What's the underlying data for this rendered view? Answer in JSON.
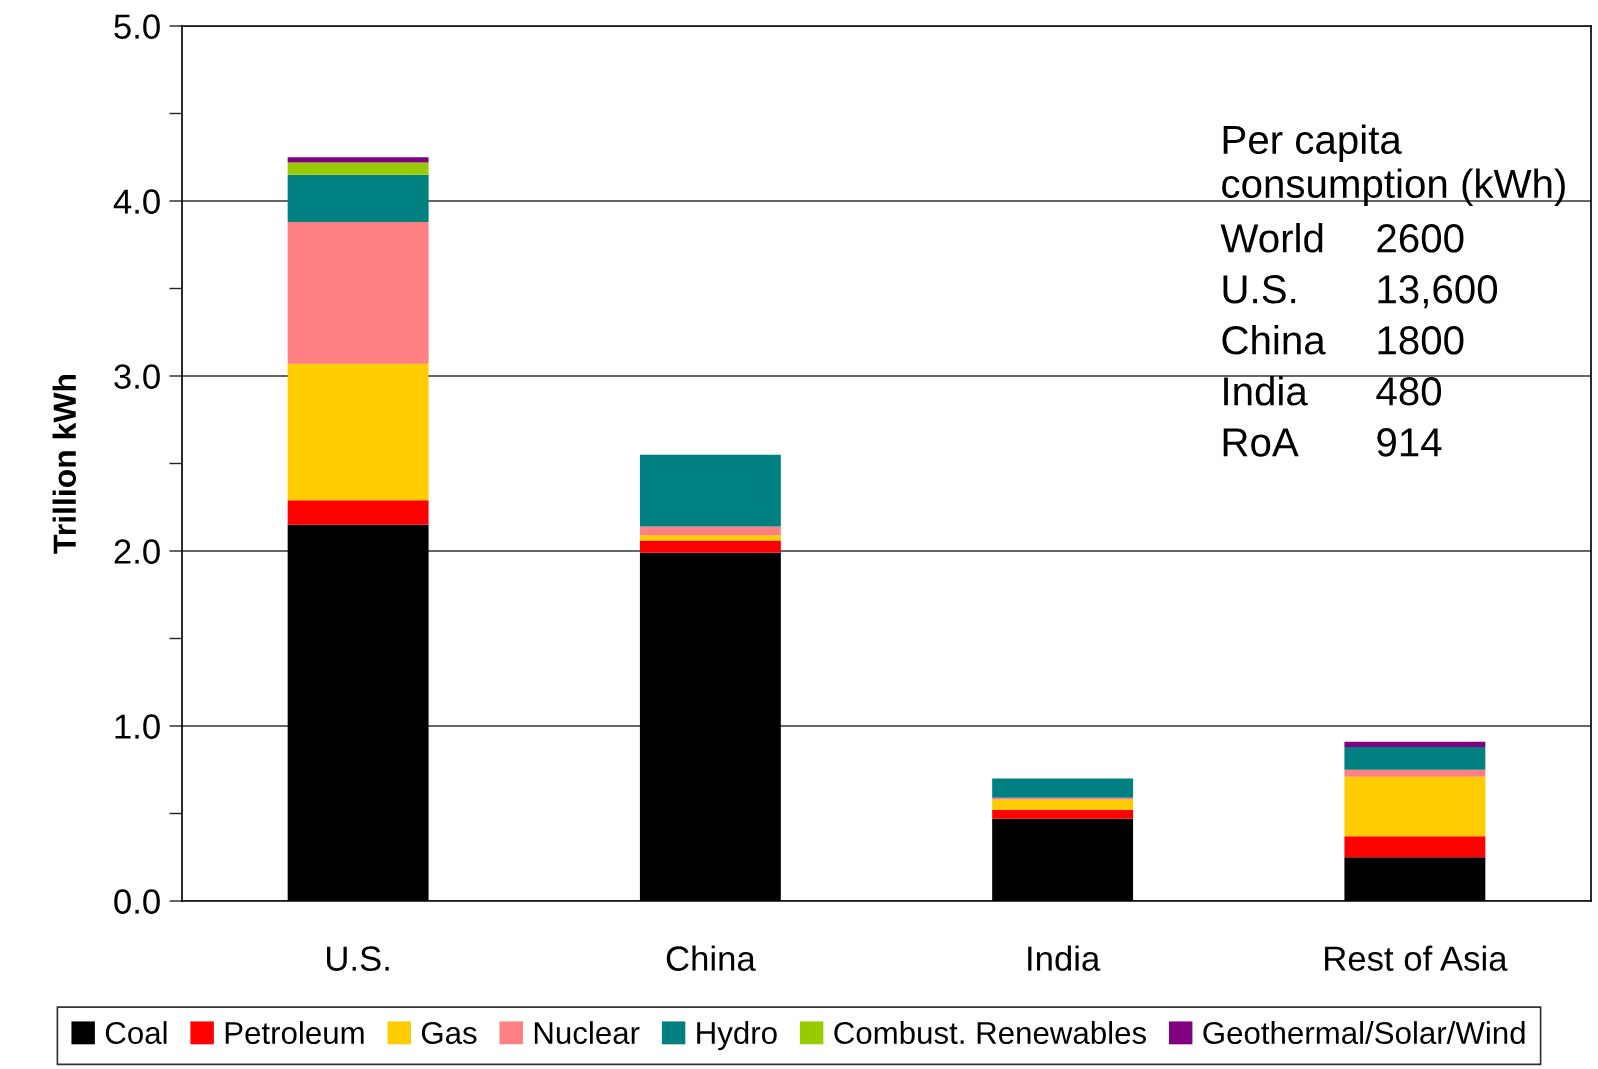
{
  "chart_data": {
    "type": "bar",
    "stacked": true,
    "categories": [
      "U.S.",
      "China",
      "India",
      "Rest of Asia"
    ],
    "ylabel": "Trillion kWh",
    "ylim": [
      0,
      5
    ],
    "yticks": [
      {
        "value": 0,
        "label": "0.0"
      },
      {
        "value": 0.5,
        "label": null
      },
      {
        "value": 1,
        "label": "1.0"
      },
      {
        "value": 1.5,
        "label": null
      },
      {
        "value": 2,
        "label": "2.0"
      },
      {
        "value": 2.5,
        "label": null
      },
      {
        "value": 3,
        "label": "3.0"
      },
      {
        "value": 3.5,
        "label": null
      },
      {
        "value": 4,
        "label": "4.0"
      },
      {
        "value": 4.5,
        "label": null
      },
      {
        "value": 5,
        "label": "5.0"
      }
    ],
    "grid": "y",
    "legend": "bottom",
    "series": [
      {
        "name": "Coal",
        "color": "#000000",
        "values": [
          2.15,
          1.99,
          0.47,
          0.25
        ]
      },
      {
        "name": "Petroleum",
        "color": "#ff0000",
        "values": [
          0.14,
          0.07,
          0.05,
          0.12
        ]
      },
      {
        "name": "Gas",
        "color": "#ffcc00",
        "values": [
          0.78,
          0.03,
          0.06,
          0.34
        ]
      },
      {
        "name": "Nuclear",
        "color": "#ff8080",
        "values": [
          0.81,
          0.05,
          0.01,
          0.04
        ]
      },
      {
        "name": "Hydro",
        "color": "#008080",
        "values": [
          0.27,
          0.41,
          0.11,
          0.13
        ]
      },
      {
        "name": "Combust. Renewables",
        "color": "#99cc00",
        "values": [
          0.07,
          null,
          null,
          null
        ]
      },
      {
        "name": "Geothermal/Solar/Wind",
        "color": "#800080",
        "values": [
          0.03,
          null,
          null,
          0.03
        ]
      }
    ],
    "annotations": [
      "Per capita\nconsumption (kWh)",
      "World 2600",
      "U.S. 13,600",
      "China 1800",
      "India 480",
      "RoA 914"
    ]
  }
}
